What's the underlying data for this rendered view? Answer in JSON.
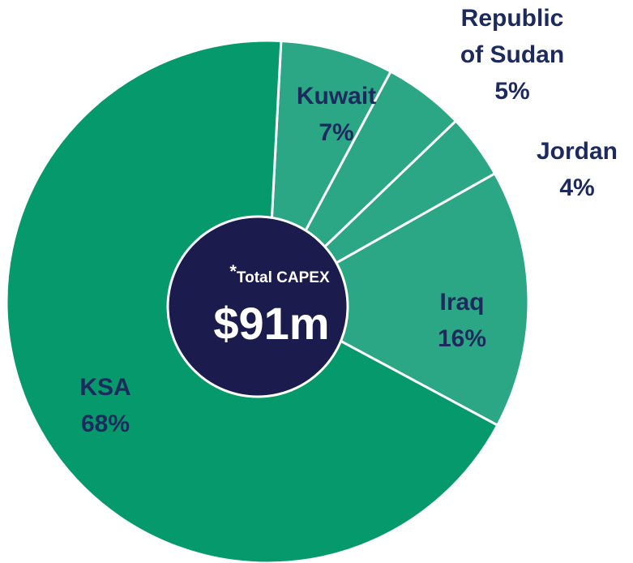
{
  "chart_data": {
    "type": "pie",
    "categories": [
      "Kuwait",
      "Republic of Sudan",
      "Jordan",
      "Iraq",
      "KSA"
    ],
    "values": [
      7,
      5,
      4,
      16,
      68
    ],
    "value_labels": [
      "7%",
      "5%",
      "4%",
      "16%",
      "68%"
    ],
    "colors": [
      "#2ba785",
      "#2ba785",
      "#2ba785",
      "#2ba785",
      "#05996c"
    ],
    "center_note": "*",
    "center_label": "Total CAPEX",
    "center_value": "$91m",
    "center_color": "#1c1b4e"
  }
}
